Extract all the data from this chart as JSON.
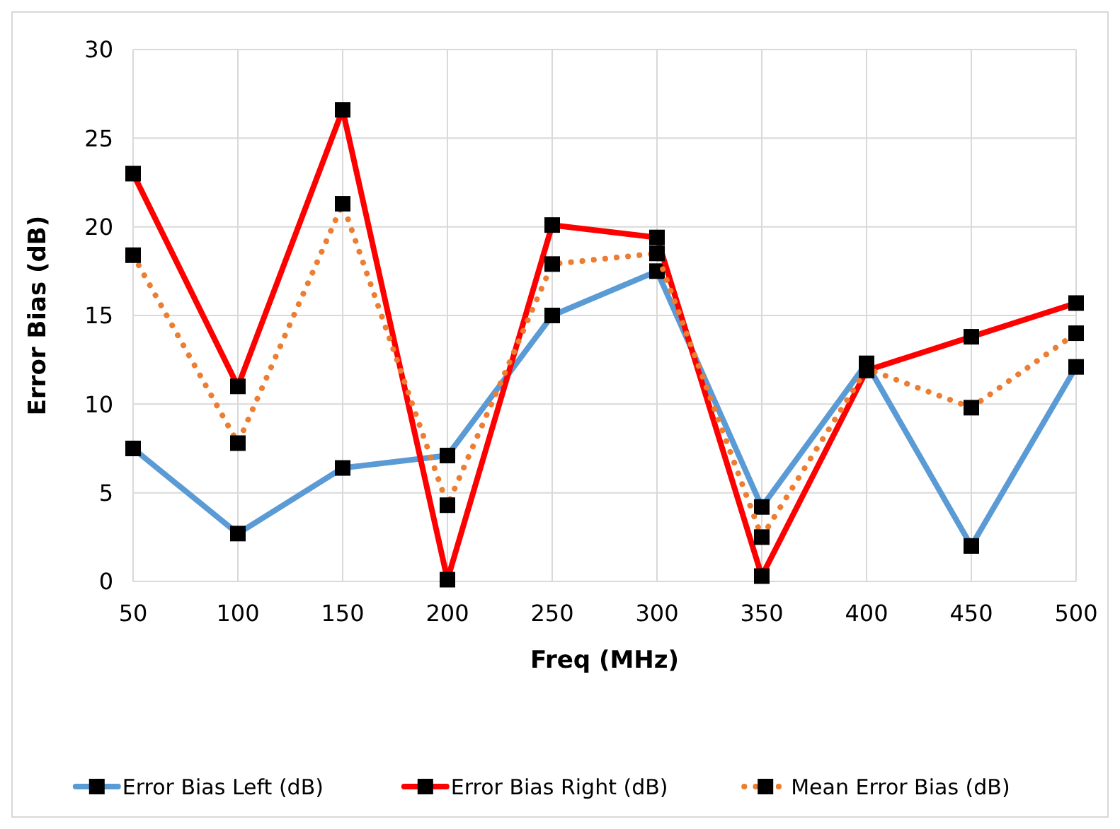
{
  "chart_data": {
    "type": "line",
    "xlabel": "Freq (MHz)",
    "ylabel": "Error Bias (dB)",
    "x": [
      50,
      100,
      150,
      200,
      250,
      300,
      350,
      400,
      450,
      500
    ],
    "xlim": [
      50,
      500
    ],
    "xticks": [
      50,
      100,
      150,
      200,
      250,
      300,
      350,
      400,
      450,
      500
    ],
    "ylim": [
      0,
      30
    ],
    "yticks": [
      0,
      5,
      10,
      15,
      20,
      25,
      30
    ],
    "grid": true,
    "legend": "bottom",
    "marker": "square",
    "series": [
      {
        "name": "Error Bias Left (dB)",
        "color": "#5b9bd5",
        "line_style": "solid",
        "values": [
          7.5,
          2.7,
          6.4,
          7.1,
          15.0,
          17.5,
          4.2,
          12.3,
          2.0,
          12.1
        ]
      },
      {
        "name": "Error Bias Right (dB)",
        "color": "#ff0000",
        "line_style": "solid",
        "values": [
          23.0,
          11.0,
          26.6,
          0.1,
          20.1,
          19.4,
          0.3,
          11.9,
          13.8,
          15.7
        ]
      },
      {
        "name": "Mean Error Bias (dB)",
        "color": "#ed7d31",
        "line_style": "dotted",
        "values": [
          18.4,
          7.8,
          21.3,
          4.3,
          17.9,
          18.5,
          2.5,
          12.0,
          9.8,
          14.0
        ]
      }
    ]
  }
}
